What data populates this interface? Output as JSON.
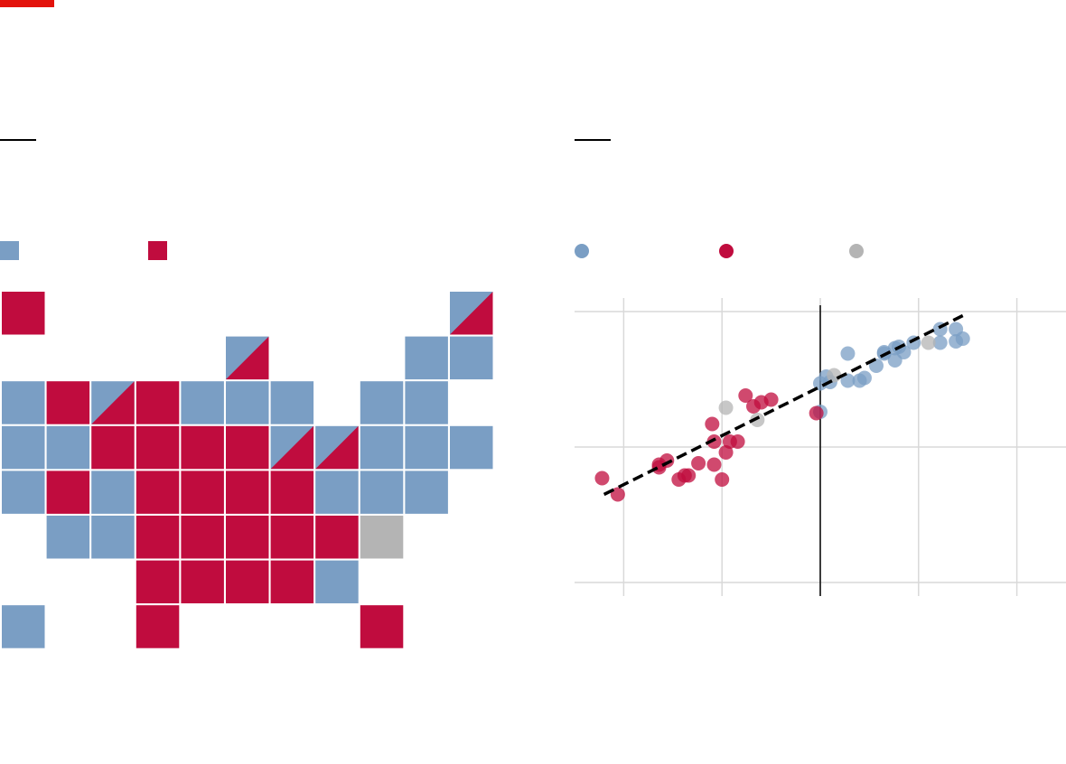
{
  "colors": {
    "brand_red": "#e3120b",
    "blue": "#7a9ec4",
    "red": "#c00c3e",
    "grey": "#b4b4b4",
    "gridline": "#d9d9d9"
  },
  "map": {
    "legend": [
      {
        "color": "blue",
        "label": ""
      },
      {
        "color": "red",
        "label": ""
      }
    ],
    "tiles": [
      {
        "col": 0,
        "row": 0,
        "fill": "red"
      },
      {
        "col": 10,
        "row": 0,
        "fill": "split",
        "upper": "blue",
        "lower": "red"
      },
      {
        "col": 5,
        "row": 1,
        "fill": "split",
        "upper": "blue",
        "lower": "red"
      },
      {
        "col": 9,
        "row": 1,
        "fill": "blue"
      },
      {
        "col": 10,
        "row": 1,
        "fill": "blue"
      },
      {
        "col": 0,
        "row": 2,
        "fill": "blue"
      },
      {
        "col": 1,
        "row": 2,
        "fill": "red"
      },
      {
        "col": 2,
        "row": 2,
        "fill": "split",
        "upper": "blue",
        "lower": "red"
      },
      {
        "col": 3,
        "row": 2,
        "fill": "red"
      },
      {
        "col": 4,
        "row": 2,
        "fill": "blue"
      },
      {
        "col": 5,
        "row": 2,
        "fill": "blue"
      },
      {
        "col": 6,
        "row": 2,
        "fill": "blue"
      },
      {
        "col": 8,
        "row": 2,
        "fill": "blue"
      },
      {
        "col": 9,
        "row": 2,
        "fill": "blue"
      },
      {
        "col": 0,
        "row": 3,
        "fill": "blue"
      },
      {
        "col": 1,
        "row": 3,
        "fill": "blue"
      },
      {
        "col": 2,
        "row": 3,
        "fill": "red"
      },
      {
        "col": 3,
        "row": 3,
        "fill": "red"
      },
      {
        "col": 4,
        "row": 3,
        "fill": "red"
      },
      {
        "col": 5,
        "row": 3,
        "fill": "red"
      },
      {
        "col": 6,
        "row": 3,
        "fill": "split",
        "upper": "blue",
        "lower": "red"
      },
      {
        "col": 7,
        "row": 3,
        "fill": "split",
        "upper": "blue",
        "lower": "red"
      },
      {
        "col": 8,
        "row": 3,
        "fill": "blue"
      },
      {
        "col": 9,
        "row": 3,
        "fill": "blue"
      },
      {
        "col": 10,
        "row": 3,
        "fill": "blue"
      },
      {
        "col": 0,
        "row": 4,
        "fill": "blue"
      },
      {
        "col": 1,
        "row": 4,
        "fill": "red"
      },
      {
        "col": 2,
        "row": 4,
        "fill": "blue"
      },
      {
        "col": 3,
        "row": 4,
        "fill": "red"
      },
      {
        "col": 4,
        "row": 4,
        "fill": "red"
      },
      {
        "col": 5,
        "row": 4,
        "fill": "red"
      },
      {
        "col": 6,
        "row": 4,
        "fill": "red"
      },
      {
        "col": 7,
        "row": 4,
        "fill": "blue"
      },
      {
        "col": 8,
        "row": 4,
        "fill": "blue"
      },
      {
        "col": 9,
        "row": 4,
        "fill": "blue"
      },
      {
        "col": 1,
        "row": 5,
        "fill": "blue"
      },
      {
        "col": 2,
        "row": 5,
        "fill": "blue"
      },
      {
        "col": 3,
        "row": 5,
        "fill": "red"
      },
      {
        "col": 4,
        "row": 5,
        "fill": "red"
      },
      {
        "col": 5,
        "row": 5,
        "fill": "red"
      },
      {
        "col": 6,
        "row": 5,
        "fill": "red"
      },
      {
        "col": 7,
        "row": 5,
        "fill": "red"
      },
      {
        "col": 8,
        "row": 5,
        "fill": "grey"
      },
      {
        "col": 3,
        "row": 6,
        "fill": "red"
      },
      {
        "col": 4,
        "row": 6,
        "fill": "red"
      },
      {
        "col": 5,
        "row": 6,
        "fill": "red"
      },
      {
        "col": 6,
        "row": 6,
        "fill": "red"
      },
      {
        "col": 7,
        "row": 6,
        "fill": "blue"
      },
      {
        "col": 0,
        "row": 7,
        "fill": "blue"
      },
      {
        "col": 3,
        "row": 7,
        "fill": "red"
      },
      {
        "col": 8,
        "row": 7,
        "fill": "red"
      }
    ]
  },
  "chart_data": {
    "type": "scatter",
    "title": "",
    "xlabel": "",
    "ylabel": "",
    "xlim": [
      0,
      5
    ],
    "ylim": [
      0,
      2.2
    ],
    "x_gridlines": [
      0.5,
      1.5,
      2.5,
      3.5,
      4.5
    ],
    "y_gridlines": [
      0.1,
      1.1,
      2.1
    ],
    "reference_x": 2.5,
    "grid": true,
    "legend_position": "top-left",
    "series": [
      {
        "color": "blue",
        "points": [
          [
            2.5,
            1.57
          ],
          [
            2.56,
            1.62
          ],
          [
            2.6,
            1.58
          ],
          [
            2.78,
            1.79
          ],
          [
            2.78,
            1.59
          ],
          [
            2.9,
            1.59
          ],
          [
            2.95,
            1.61
          ],
          [
            3.07,
            1.7
          ],
          [
            3.15,
            1.8
          ],
          [
            3.15,
            1.79
          ],
          [
            3.26,
            1.83
          ],
          [
            3.26,
            1.74
          ],
          [
            3.3,
            1.84
          ],
          [
            3.35,
            1.8
          ],
          [
            3.45,
            1.87
          ],
          [
            3.72,
            1.97
          ],
          [
            3.72,
            1.87
          ],
          [
            3.88,
            1.88
          ],
          [
            3.88,
            1.97
          ],
          [
            3.95,
            1.9
          ],
          [
            2.5,
            1.36
          ]
        ]
      },
      {
        "color": "red",
        "points": [
          [
            0.28,
            0.87
          ],
          [
            0.44,
            0.75
          ],
          [
            0.86,
            0.97
          ],
          [
            0.94,
            1.0
          ],
          [
            0.86,
            0.95
          ],
          [
            1.06,
            0.86
          ],
          [
            1.12,
            0.89
          ],
          [
            1.16,
            0.89
          ],
          [
            1.26,
            0.98
          ],
          [
            1.4,
            1.27
          ],
          [
            1.42,
            1.14
          ],
          [
            1.42,
            0.97
          ],
          [
            1.5,
            0.86
          ],
          [
            1.54,
            1.06
          ],
          [
            1.58,
            1.14
          ],
          [
            1.66,
            1.14
          ],
          [
            1.74,
            1.48
          ],
          [
            1.82,
            1.4
          ],
          [
            1.9,
            1.43
          ],
          [
            2.0,
            1.45
          ],
          [
            2.46,
            1.35
          ]
        ]
      },
      {
        "color": "grey",
        "points": [
          [
            1.54,
            1.39
          ],
          [
            1.86,
            1.3
          ],
          [
            2.64,
            1.63
          ],
          [
            3.6,
            1.87
          ]
        ]
      }
    ],
    "trend_line": {
      "from": [
        0.3,
        0.75
      ],
      "to": [
        3.95,
        2.07
      ]
    },
    "legend": [
      {
        "color": "blue",
        "label": ""
      },
      {
        "color": "red",
        "label": ""
      },
      {
        "color": "grey",
        "label": ""
      }
    ]
  }
}
